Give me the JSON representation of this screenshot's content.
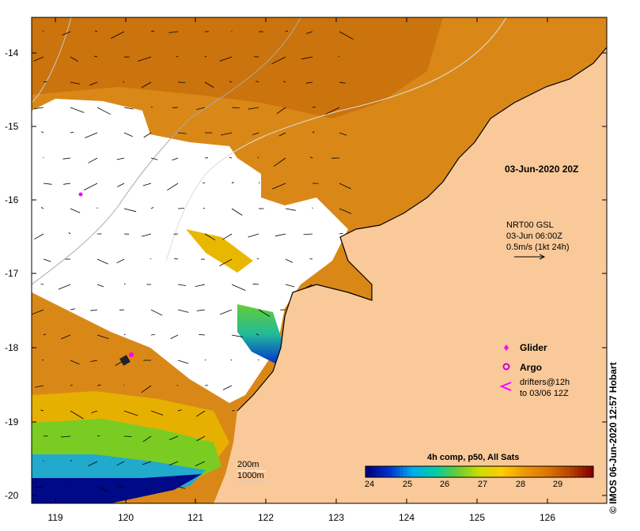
{
  "map": {
    "timestamp": "03-Jun-2020 20Z",
    "current_product": {
      "line1": "NRT00 GSL",
      "line2": "03-Jun 06:00Z",
      "line3": "0.5m/s (1kt 24h)"
    },
    "legend": {
      "glider": "Glider",
      "argo": "Argo",
      "drifters_line1": "drifters@12h",
      "drifters_line2": "to 03/06 12Z",
      "glider_color": "#ff00ff",
      "argo_color": "#cc00cc",
      "drifter_color": "#ff00ff"
    },
    "isobaths": [
      "200m",
      "1000m"
    ],
    "colorbar": {
      "title": "4h comp, p50, All Sats",
      "ticks": [
        "24",
        "25",
        "26",
        "27",
        "28",
        "29"
      ],
      "colors": [
        "#000080",
        "#0033cc",
        "#00aaee",
        "#00ccaa",
        "#66cc33",
        "#ccdd00",
        "#ffcc00",
        "#ee9900",
        "#dd7700",
        "#bb4400",
        "#880000"
      ]
    },
    "credit": "© IMOS 06-Jun-2020 12:57 Hobart",
    "axis": {
      "longitudes": [
        "119",
        "120",
        "121",
        "122",
        "123",
        "124",
        "125",
        "126"
      ],
      "latitudes": [
        "-14",
        "-15",
        "-16",
        "-17",
        "-18",
        "-19",
        "-20"
      ]
    },
    "colors": {
      "land": "#f9c99a",
      "ocean_warm": "#d88a1a",
      "no_data": "#ffffff"
    }
  }
}
